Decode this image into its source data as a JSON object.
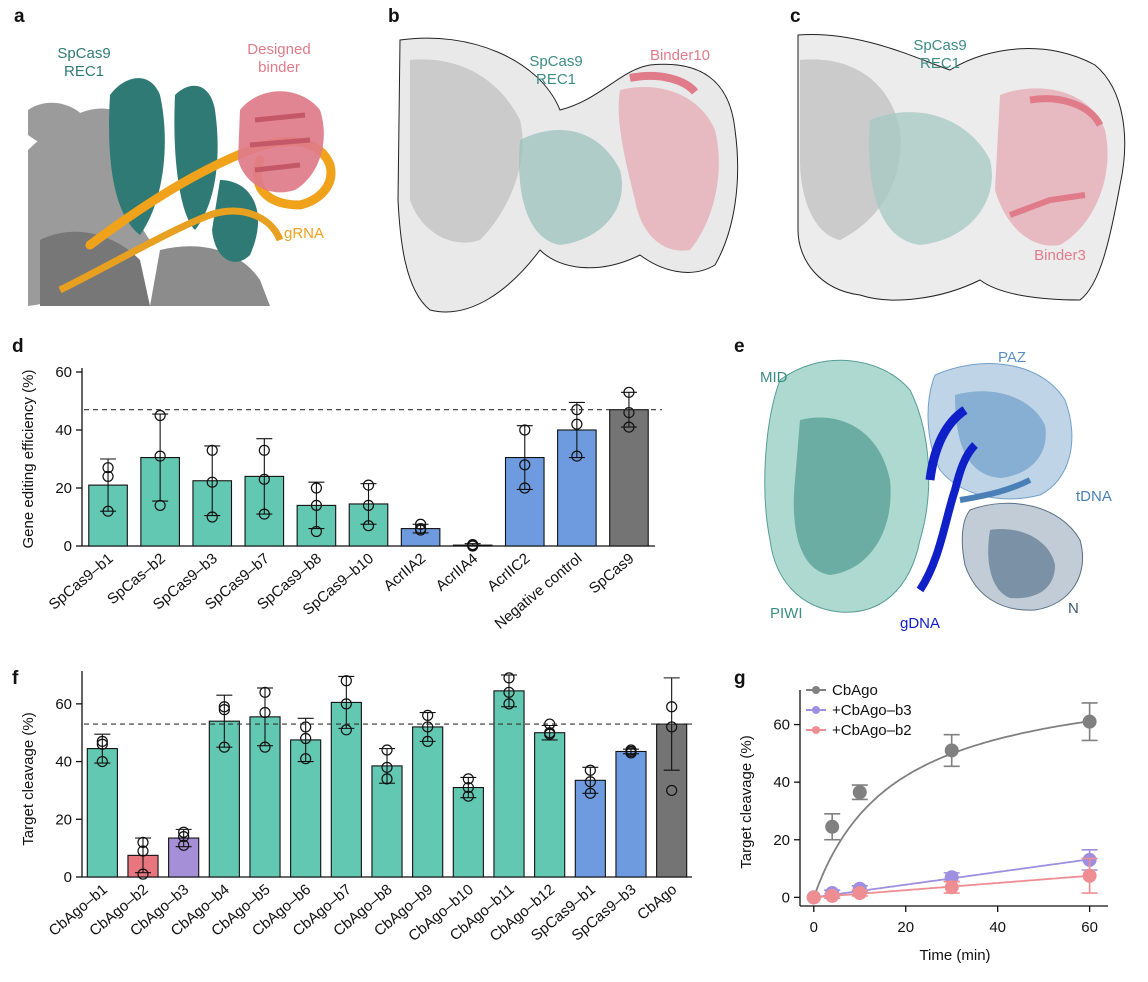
{
  "panels": {
    "a": {
      "label": "a",
      "texts": [
        {
          "text": "SpCas9",
          "color": "#2f7a74"
        },
        {
          "text": "REC1",
          "color": "#2f7a74"
        },
        {
          "text": "Designed",
          "color": "#e07b8a"
        },
        {
          "text": "binder",
          "color": "#e07b8a"
        },
        {
          "text": "gRNA",
          "color": "#f0a21a"
        }
      ]
    },
    "b": {
      "label": "b",
      "texts": [
        {
          "text": "SpCas9",
          "color": "#3c8c84"
        },
        {
          "text": "REC1",
          "color": "#3c8c84"
        },
        {
          "text": "Binder10",
          "color": "#e07b8a"
        }
      ]
    },
    "c": {
      "label": "c",
      "texts": [
        {
          "text": "SpCas9",
          "color": "#3c8c84"
        },
        {
          "text": "REC1",
          "color": "#3c8c84"
        },
        {
          "text": "Binder3",
          "color": "#e07b8a"
        }
      ]
    },
    "e": {
      "label": "e",
      "texts": [
        {
          "text": "MID",
          "color": "#3c8c84"
        },
        {
          "text": "PAZ",
          "color": "#5b8fbf"
        },
        {
          "text": "tDNA",
          "color": "#4a80b5"
        },
        {
          "text": "PIWI",
          "color": "#3c8c84"
        },
        {
          "text": "gDNA",
          "color": "#1020c8"
        },
        {
          "text": "N",
          "color": "#3d5870"
        }
      ]
    }
  },
  "colors": {
    "teal": "#62c8b2",
    "blue": "#6e9be0",
    "gray": "#747474",
    "red": "#e8767e",
    "purple": "#a58fd6",
    "line_gray": "#808080",
    "line_purple": "#9f8fe0",
    "line_red": "#ef8e92"
  },
  "chart_data": [
    {
      "id": "d",
      "label": "d",
      "type": "bar",
      "ylabel": "Gene editing efficiency (%)",
      "ylim": [
        0,
        60
      ],
      "yticks": [
        0,
        20,
        40,
        60
      ],
      "reference_line": 47,
      "categories": [
        "SpCas9–b1",
        "SpCas–b2",
        "SpCas9–b3",
        "SpCas9–b7",
        "SpCas9–b8",
        "SpCas9–b10",
        "AcrIIA2",
        "AcrIIA4",
        "AcrIIC2",
        "Negative control",
        "SpCas9"
      ],
      "values": [
        21,
        30.5,
        22.5,
        24,
        14,
        14.5,
        6,
        0.3,
        30.5,
        40,
        47
      ],
      "errors": [
        9,
        15,
        12,
        13,
        8,
        7,
        1.5,
        0.5,
        11,
        9.5,
        6
      ],
      "points": [
        [
          12,
          24,
          27
        ],
        [
          14,
          31,
          45
        ],
        [
          10,
          22,
          33
        ],
        [
          11,
          23,
          33
        ],
        [
          5,
          14,
          20
        ],
        [
          7,
          14,
          21
        ],
        [
          5.5,
          6,
          7.5
        ],
        [
          0,
          0.3,
          0.5
        ],
        [
          20,
          28,
          40
        ],
        [
          31,
          42,
          47
        ],
        [
          41,
          46,
          53
        ]
      ],
      "bar_colors": [
        "teal",
        "teal",
        "teal",
        "teal",
        "teal",
        "teal",
        "blue",
        "blue",
        "blue",
        "blue",
        "gray"
      ]
    },
    {
      "id": "f",
      "label": "f",
      "type": "bar",
      "ylabel": "Target cleavage (%)",
      "ylim": [
        0,
        70
      ],
      "yticks": [
        0,
        20,
        40,
        60
      ],
      "reference_line": 53,
      "categories": [
        "CbAgo–b1",
        "CbAgo–b2",
        "CbAgo–b3",
        "CbAgo–b4",
        "CbAgo–b5",
        "CbAgo–b6",
        "CbAgo–b7",
        "CbAgo–b8",
        "CbAgo–b9",
        "CbAgo–b10",
        "CbAgo–b11",
        "CbAgo–b12",
        "SpCas9–b1",
        "SpCas9–b3",
        "CbAgo"
      ],
      "values": [
        44.5,
        7.5,
        13.5,
        54,
        55.5,
        47.5,
        60.5,
        38.5,
        52,
        31,
        64.5,
        50,
        33.5,
        43.5,
        53
      ],
      "errors": [
        5,
        6,
        3,
        9,
        10,
        7.5,
        9,
        6,
        5,
        3.5,
        5.5,
        2.5,
        4.5,
        0.8,
        16
      ],
      "points": [
        [
          40,
          46,
          47
        ],
        [
          1,
          9,
          12
        ],
        [
          11,
          14,
          15.5
        ],
        [
          45,
          58,
          59
        ],
        [
          45,
          57,
          64
        ],
        [
          41,
          48,
          52
        ],
        [
          51,
          60,
          68
        ],
        [
          34,
          38,
          44
        ],
        [
          47,
          52,
          56
        ],
        [
          28,
          31,
          34
        ],
        [
          60,
          64,
          69
        ],
        [
          49.5,
          50,
          53
        ],
        [
          29,
          33,
          37
        ],
        [
          43,
          43.5,
          44
        ],
        [
          30,
          52,
          59
        ]
      ],
      "bar_colors": [
        "teal",
        "red",
        "purple",
        "teal",
        "teal",
        "teal",
        "teal",
        "teal",
        "teal",
        "teal",
        "teal",
        "teal",
        "blue",
        "blue",
        "gray"
      ]
    },
    {
      "id": "g",
      "label": "g",
      "type": "line",
      "xlabel": "Time (min)",
      "ylabel": "Target cleavage (%)",
      "xlim": [
        -3,
        64
      ],
      "ylim": [
        -3,
        72
      ],
      "xticks": [
        0,
        20,
        40,
        60
      ],
      "yticks": [
        0,
        20,
        40,
        60
      ],
      "legend": "top-left",
      "series": [
        {
          "name": "CbAgo",
          "color": "line_gray",
          "fit": "hyperbolic",
          "vmax": 79,
          "k": 17.5,
          "x": [
            0,
            4,
            10,
            30,
            60
          ],
          "y": [
            0,
            24.5,
            36.5,
            51,
            61
          ],
          "err": [
            0,
            4.5,
            2.5,
            5.5,
            6.5
          ]
        },
        {
          "name": "+CbAgo–b3",
          "color": "line_purple",
          "fit": "linear",
          "slope": 0.22,
          "x": [
            0,
            4,
            10,
            30,
            60
          ],
          "y": [
            0,
            1.5,
            3,
            7,
            13
          ],
          "err": [
            0,
            1,
            1,
            1.5,
            3.5
          ]
        },
        {
          "name": "+CbAgo–b2",
          "color": "line_red",
          "fit": "linear",
          "slope": 0.125,
          "x": [
            0,
            4,
            10,
            30,
            60
          ],
          "y": [
            0,
            0.5,
            1.5,
            3.5,
            7.5
          ],
          "err": [
            0,
            0.8,
            1,
            2,
            6
          ]
        }
      ]
    }
  ]
}
